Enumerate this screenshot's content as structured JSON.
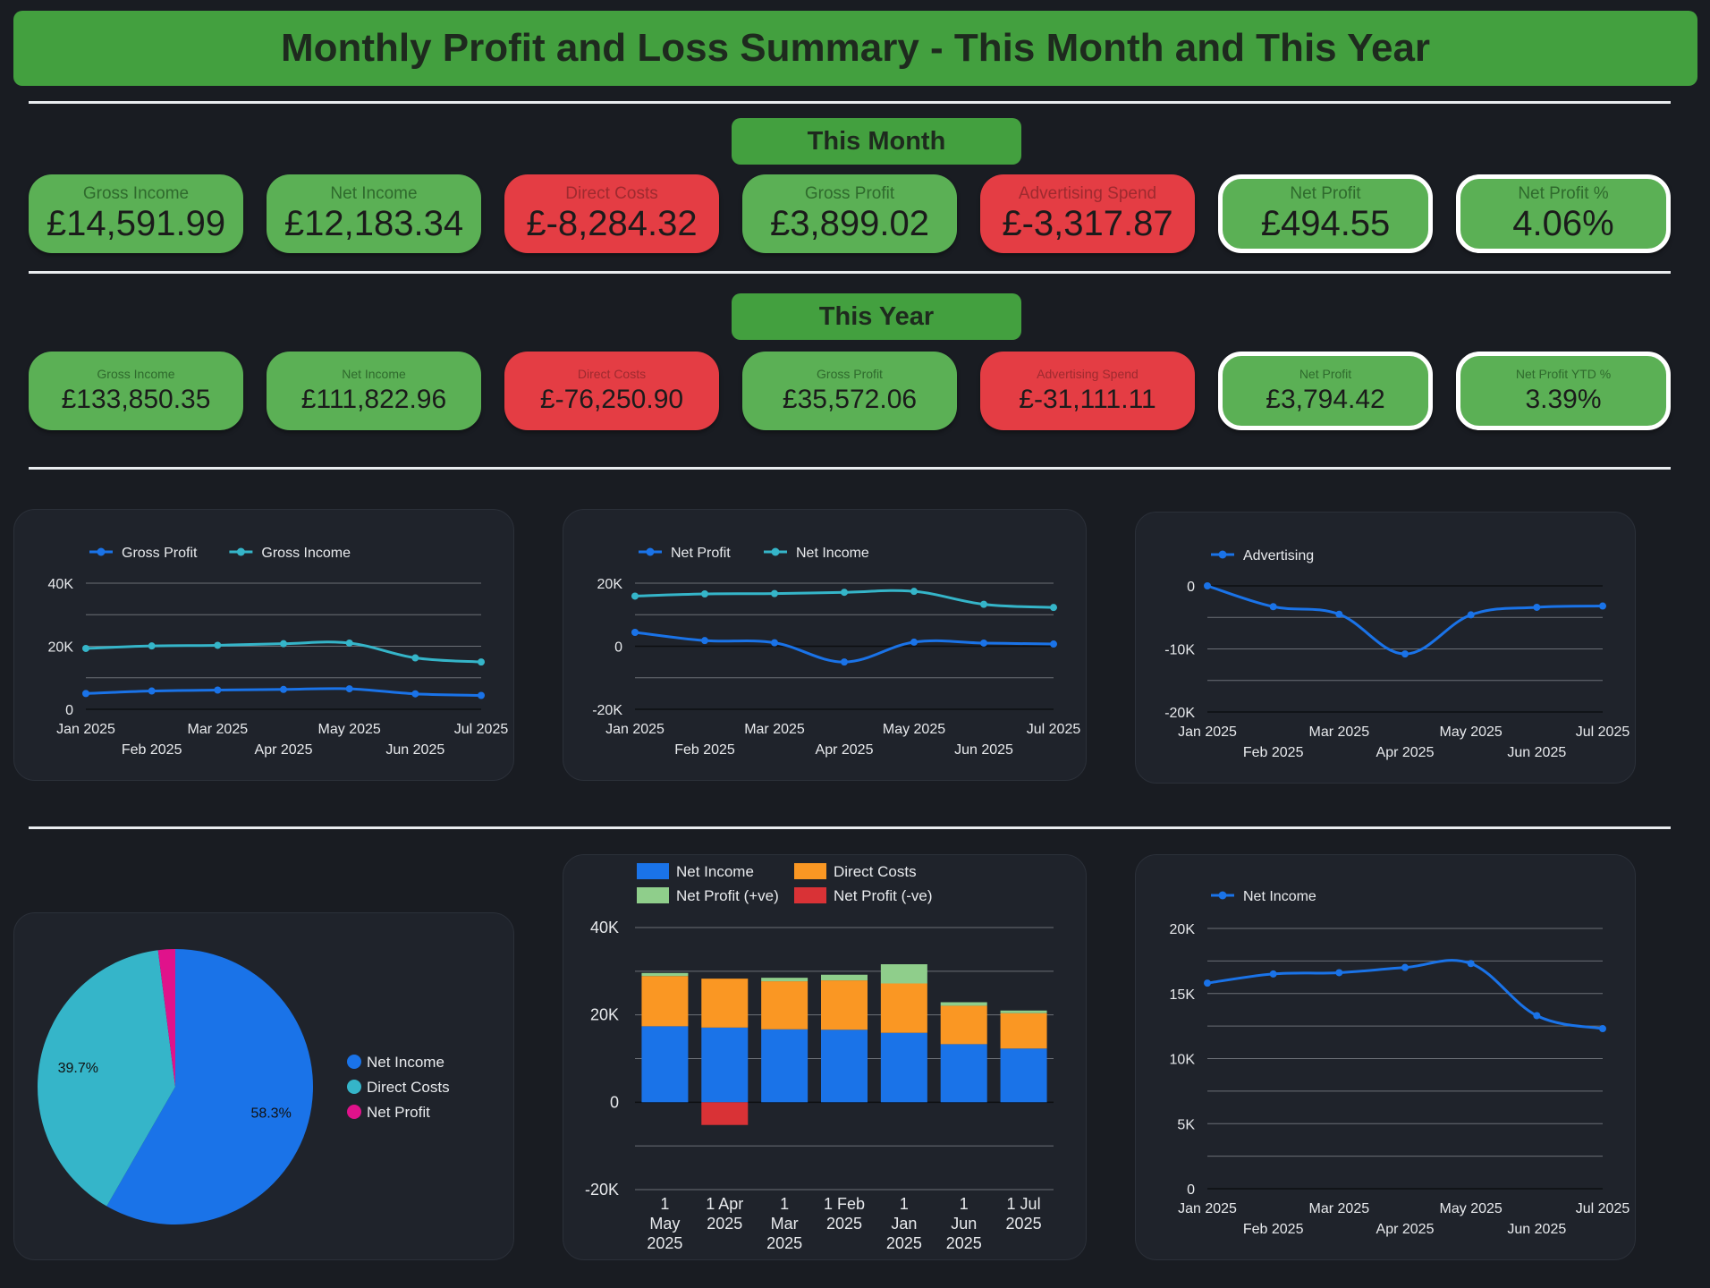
{
  "title": "Monthly Profit and Loss Summary - This Month and This Year",
  "this_month": {
    "heading": "This Month",
    "cards": [
      {
        "label": "Gross Income",
        "value": "£14,591.99",
        "tone": "green"
      },
      {
        "label": "Net Income",
        "value": "£12,183.34",
        "tone": "green"
      },
      {
        "label": "Direct Costs",
        "value": "£-8,284.32",
        "tone": "red"
      },
      {
        "label": "Gross Profit",
        "value": "£3,899.02",
        "tone": "green"
      },
      {
        "label": "Advertising Spend",
        "value": "£-3,317.87",
        "tone": "red"
      },
      {
        "label": "Net Profit",
        "value": "£494.55",
        "tone": "green-outlined"
      },
      {
        "label": "Net Profit %",
        "value": "4.06%",
        "tone": "green-outlined"
      }
    ]
  },
  "this_year": {
    "heading": "This Year",
    "cards": [
      {
        "label": "Gross Income",
        "value": "£133,850.35",
        "tone": "green"
      },
      {
        "label": "Net Income",
        "value": "£111,822.96",
        "tone": "green"
      },
      {
        "label": "Direct Costs",
        "value": "£-76,250.90",
        "tone": "red"
      },
      {
        "label": "Gross Profit",
        "value": "£35,572.06",
        "tone": "green"
      },
      {
        "label": "Advertising Spend",
        "value": "£-31,111.11",
        "tone": "red"
      },
      {
        "label": "Net Profit",
        "value": "£3,794.42",
        "tone": "green-outlined"
      },
      {
        "label": "Net Profit YTD %",
        "value": "3.39%",
        "tone": "green-outlined"
      }
    ]
  },
  "colors": {
    "blue": "#1a73e8",
    "teal": "#35b5c9",
    "orange": "#fa9723",
    "lightgreen": "#8fce8b",
    "red": "#d93236",
    "magenta": "#e0128b",
    "grid": "#6b6f76",
    "text": "#e8eaed"
  },
  "chart_data": [
    {
      "type": "line",
      "months": [
        "Jan 2025",
        "Feb 2025",
        "Mar 2025",
        "Apr 2025",
        "May 2025",
        "Jun 2025",
        "Jul 2025"
      ],
      "legend": "top-left",
      "ylim": [
        0,
        40000
      ],
      "yticks": [
        {
          "v": 0,
          "label": "0"
        },
        {
          "v": 20000,
          "label": "20K"
        },
        {
          "v": 40000,
          "label": "40K"
        }
      ],
      "series": [
        {
          "name": "Gross Profit",
          "color": "#1a73e8",
          "values": [
            5000,
            5800,
            6100,
            6300,
            6500,
            4900,
            4400
          ]
        },
        {
          "name": "Gross Income",
          "color": "#35b5c9",
          "values": [
            19300,
            20100,
            20300,
            20800,
            21000,
            16300,
            15000
          ]
        }
      ]
    },
    {
      "type": "line",
      "months": [
        "Jan 2025",
        "Feb 2025",
        "Mar 2025",
        "Apr 2025",
        "May 2025",
        "Jun 2025",
        "Jul 2025"
      ],
      "legend": "top-left",
      "ylim": [
        -20000,
        20000
      ],
      "yticks": [
        {
          "v": -20000,
          "label": "-20K"
        },
        {
          "v": 0,
          "label": "0"
        },
        {
          "v": 20000,
          "label": "20K"
        }
      ],
      "series": [
        {
          "name": "Net Profit",
          "color": "#1a73e8",
          "values": [
            4400,
            1800,
            1100,
            -5000,
            1300,
            1000,
            700
          ]
        },
        {
          "name": "Net Income",
          "color": "#35b5c9",
          "values": [
            15900,
            16600,
            16700,
            17100,
            17400,
            13300,
            12300
          ]
        }
      ]
    },
    {
      "type": "line",
      "months": [
        "Jan 2025",
        "Feb 2025",
        "Mar 2025",
        "Apr 2025",
        "May 2025",
        "Jun 2025",
        "Jul 2025"
      ],
      "legend": "top-left",
      "ylim": [
        -20000,
        0
      ],
      "yticks": [
        {
          "v": -20000,
          "label": "-20K"
        },
        {
          "v": -10000,
          "label": "-10K"
        },
        {
          "v": 0,
          "label": "0"
        }
      ],
      "series": [
        {
          "name": "Advertising",
          "color": "#1a73e8",
          "values": [
            0,
            -3300,
            -4500,
            -10800,
            -4600,
            -3400,
            -3200
          ]
        }
      ]
    },
    {
      "type": "pie",
      "slices": [
        {
          "name": "Net Income",
          "value": 58.3,
          "label": "58.3%",
          "color": "#1a73e8"
        },
        {
          "name": "Direct Costs",
          "value": 39.7,
          "label": "39.7%",
          "color": "#35b5c9"
        },
        {
          "name": "Net Profit",
          "value": 2.0,
          "label": "",
          "color": "#e0128b"
        }
      ],
      "legend": "right"
    },
    {
      "type": "bar",
      "stacked": true,
      "categories": [
        [
          "1",
          "May",
          "2025"
        ],
        [
          "1 Apr",
          "2025"
        ],
        [
          "1",
          "Mar",
          "2025"
        ],
        [
          "1 Feb",
          "2025"
        ],
        [
          "1",
          "Jan",
          "2025"
        ],
        [
          "1",
          "Jun",
          "2025"
        ],
        [
          "1 Jul",
          "2025"
        ]
      ],
      "ylim": [
        -20000,
        40000
      ],
      "yticks": [
        {
          "v": -20000,
          "label": "-20K"
        },
        {
          "v": 0,
          "label": "0"
        },
        {
          "v": 20000,
          "label": "20K"
        },
        {
          "v": 40000,
          "label": "40K"
        }
      ],
      "legend": "top-left",
      "series": [
        {
          "name": "Net Income",
          "color": "#1a73e8",
          "values": [
            17400,
            17100,
            16700,
            16600,
            15900,
            13300,
            12300
          ]
        },
        {
          "name": "Direct Costs",
          "color": "#fa9723",
          "values": [
            11500,
            11200,
            11000,
            11300,
            11300,
            8800,
            8100
          ]
        },
        {
          "name": "Net Profit (+ve)",
          "color": "#8fce8b",
          "values": [
            700,
            0,
            800,
            1300,
            4400,
            800,
            600
          ]
        },
        {
          "name": "Net Profit (-ve)",
          "color": "#d93236",
          "values": [
            0,
            -5200,
            0,
            0,
            0,
            0,
            0
          ]
        }
      ]
    },
    {
      "type": "line",
      "months": [
        "Jan 2025",
        "Feb 2025",
        "Mar 2025",
        "Apr 2025",
        "May 2025",
        "Jun 2025",
        "Jul 2025"
      ],
      "legend": "top-left",
      "ylim": [
        0,
        20000
      ],
      "yticks": [
        {
          "v": 0,
          "label": "0"
        },
        {
          "v": 5000,
          "label": "5K"
        },
        {
          "v": 10000,
          "label": "10K"
        },
        {
          "v": 15000,
          "label": "15K"
        },
        {
          "v": 20000,
          "label": "20K"
        }
      ],
      "series": [
        {
          "name": "Net Income",
          "color": "#1a73e8",
          "values": [
            15800,
            16500,
            16600,
            17000,
            17300,
            13300,
            12300
          ]
        }
      ]
    }
  ]
}
